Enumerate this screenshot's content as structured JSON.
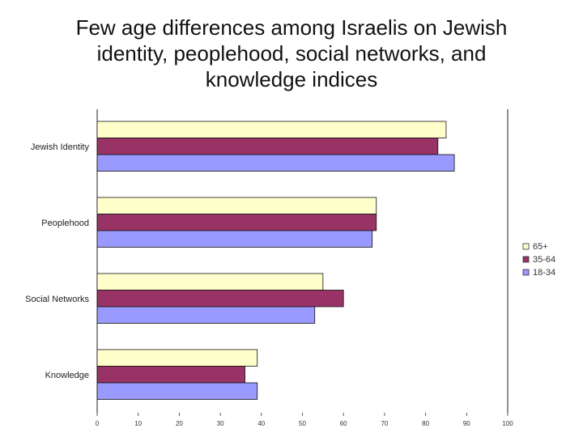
{
  "title_lines": [
    "Few age differences among Israelis on Jewish",
    "identity, peoplehood, social networks, and",
    "knowledge indices"
  ],
  "chart_data": {
    "type": "bar",
    "orientation": "horizontal",
    "title": "Few age differences among Israelis on Jewish identity, peoplehood, social networks, and knowledge indices",
    "categories": [
      "Jewish Identity",
      "Peoplehood",
      "Social Networks",
      "Knowledge"
    ],
    "series": [
      {
        "name": "65+",
        "values": [
          85,
          68,
          55,
          39
        ],
        "color": "#ffffcc"
      },
      {
        "name": "35-64",
        "values": [
          83,
          68,
          60,
          36
        ],
        "color": "#993366"
      },
      {
        "name": "18-34",
        "values": [
          87,
          67,
          53,
          39
        ],
        "color": "#9999ff"
      }
    ],
    "xlim": [
      0,
      100
    ],
    "xticks": [
      0,
      10,
      20,
      30,
      40,
      50,
      60,
      70,
      80,
      90,
      100
    ],
    "xlabel": "",
    "ylabel": "",
    "grid": false,
    "legend_position": "right",
    "legend_order": [
      "65+",
      "35-64",
      "18-34"
    ]
  }
}
